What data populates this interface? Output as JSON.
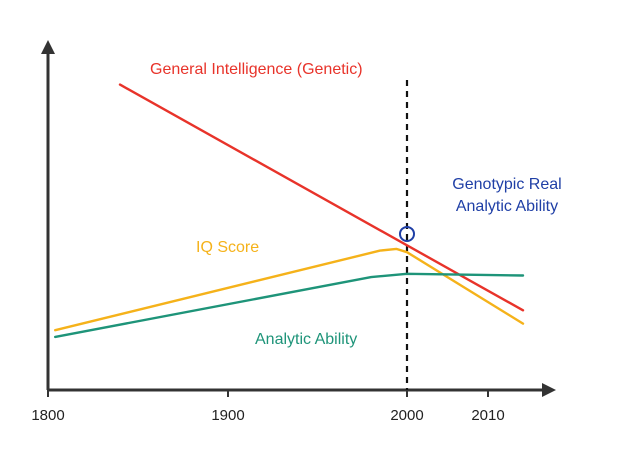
{
  "chart_data": {
    "type": "line",
    "title": "",
    "xlabel": "",
    "ylabel": "",
    "x_ticks": [
      1800,
      1900,
      2000,
      2010
    ],
    "ylim": [
      0,
      100
    ],
    "grid": false,
    "legend": "none",
    "series": [
      {
        "name": "General Intelligence (Genetic)",
        "color": "#e8332a",
        "points": [
          [
            1840,
            92
          ],
          [
            2015,
            24
          ]
        ]
      },
      {
        "name": "IQ Score",
        "color": "#f5b21a",
        "points": [
          [
            1804,
            18
          ],
          [
            1985,
            42
          ],
          [
            1994,
            42.5
          ],
          [
            2000,
            41.5
          ],
          [
            2015,
            20
          ]
        ]
      },
      {
        "name": "Analytic Ability",
        "color": "#1e9479",
        "points": [
          [
            1804,
            16
          ],
          [
            1980,
            34
          ],
          [
            2000,
            35
          ],
          [
            2015,
            34.5
          ]
        ]
      }
    ],
    "reference_line": {
      "x": 2000,
      "style": "dashed",
      "color": "#111111"
    },
    "marker": {
      "label": "Genotypic Real\nAnalytic Ability",
      "label_lines": [
        "Genotypic Real",
        "Analytic Ability"
      ],
      "x": 2000,
      "y": 47,
      "shape": "circle",
      "color": "#1f3fa6"
    }
  }
}
